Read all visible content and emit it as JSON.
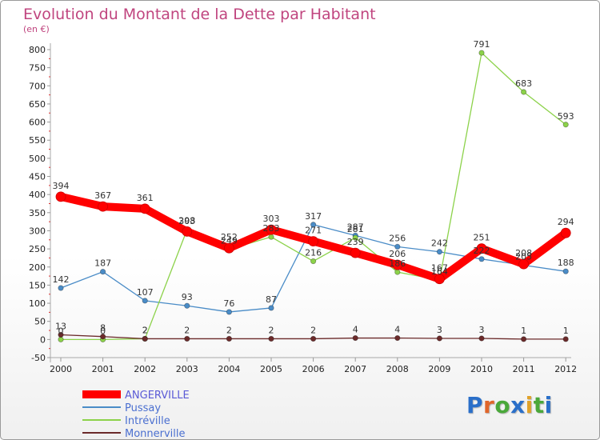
{
  "chart_data": {
    "type": "line",
    "title": "Evolution du Montant de la Dette par Habitant",
    "unit_label": "(en €)",
    "ylim": [
      -50,
      800
    ],
    "yticks": [
      800,
      750,
      700,
      650,
      600,
      550,
      500,
      450,
      400,
      350,
      300,
      250,
      200,
      150,
      100,
      50,
      0,
      -50
    ],
    "ytick_labels": [
      "800",
      "750",
      "700",
      "650",
      "600",
      "550",
      "500",
      "450",
      "400",
      "350",
      "300",
      "250",
      "200",
      "150",
      "100",
      "50",
      "0",
      "-50"
    ],
    "categories": [
      "2000",
      "2001",
      "2002",
      "2003",
      "2004",
      "2005",
      "2006",
      "2007",
      "2008",
      "2009",
      "2010",
      "2011",
      "2012"
    ],
    "series": [
      {
        "name": "Pussay",
        "color": "#4a8cc7",
        "values": [
          142,
          187,
          107,
          93,
          76,
          87,
          317,
          287,
          256,
          242,
          222,
          205,
          188
        ],
        "labels": [
          "142",
          "187",
          "107",
          "93",
          "76",
          "87",
          "317",
          "287",
          "256",
          "242",
          "222",
          "205",
          "188"
        ]
      },
      {
        "name": "Intréville",
        "color": "#8cd24a",
        "values": [
          0,
          0,
          2,
          303,
          249,
          283,
          216,
          281,
          186,
          164,
          791,
          683,
          593
        ],
        "labels": [
          "0",
          "0",
          "2",
          "303",
          "249",
          "283",
          "216",
          "281",
          "186",
          "164",
          "791",
          "683",
          "593"
        ]
      },
      {
        "name": "Monnerville",
        "color": "#6b2a2a",
        "values": [
          13,
          8,
          2,
          2,
          2,
          2,
          2,
          4,
          4,
          3,
          3,
          1,
          1
        ],
        "labels": [
          "13",
          "8",
          "2",
          "2",
          "2",
          "2",
          "2",
          "4",
          "4",
          "3",
          "3",
          "1",
          "1"
        ]
      },
      {
        "name": "ANGERVILLE",
        "color": "#ff0000",
        "values": [
          394,
          367,
          361,
          298,
          252,
          303,
          271,
          239,
          206,
          167,
          251,
          208,
          294
        ],
        "labels": [
          "394",
          "367",
          "361",
          "298",
          "252",
          "303",
          "271",
          "239",
          "206",
          "167",
          "251",
          "208",
          "294"
        ]
      }
    ],
    "legend": [
      "ANGERVILLE",
      "Pussay",
      "Intréville",
      "Monnerville"
    ],
    "legend_placement": "bottom-left",
    "grid": false
  },
  "brand": {
    "letters": [
      "P",
      "r",
      "o",
      "x",
      "i",
      "t",
      "i"
    ],
    "colors": [
      "#2a6fc9",
      "#e0662a",
      "#4aa83a",
      "#2a6fc9",
      "#e0a22a",
      "#4aa83a",
      "#2a6fc9"
    ]
  }
}
